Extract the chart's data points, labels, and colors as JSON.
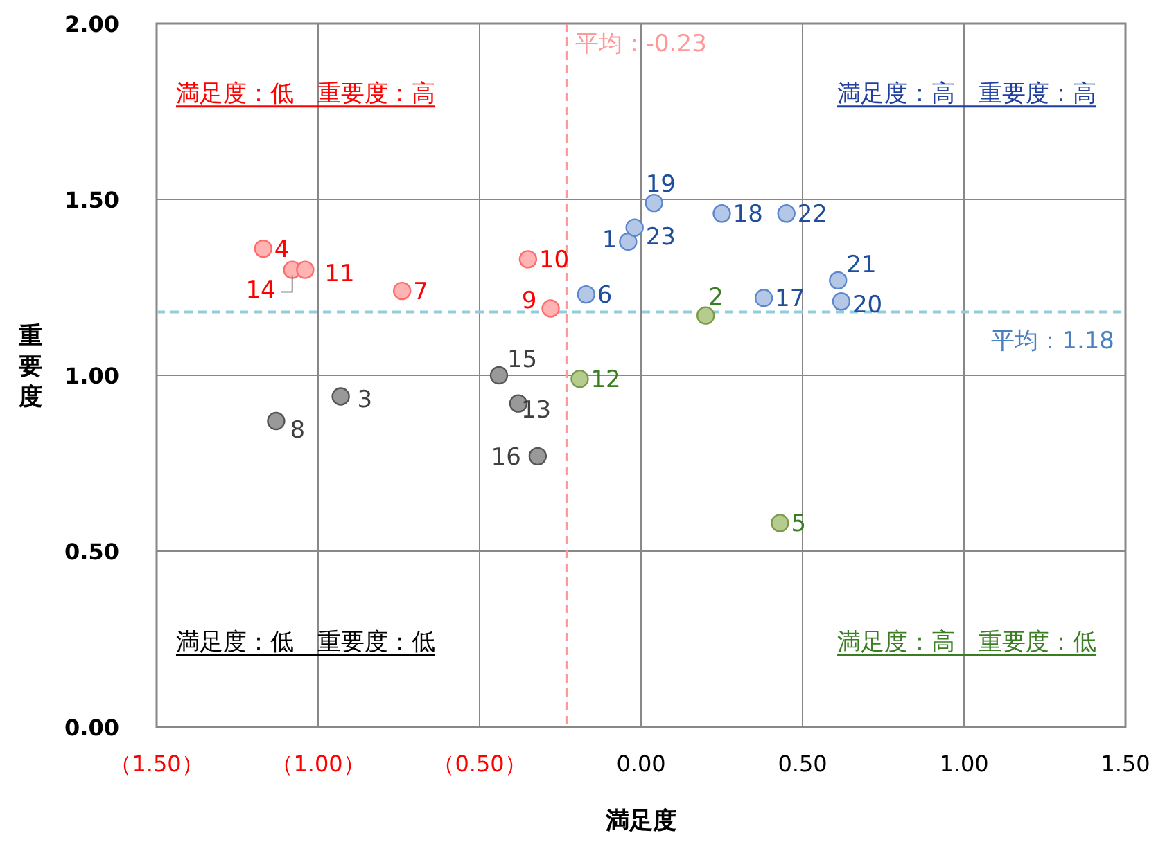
{
  "chart_data": {
    "type": "scatter",
    "xlabel": "満足度",
    "ylabel": "重要度",
    "xlim": [
      -1.5,
      1.5
    ],
    "ylim": [
      0,
      2
    ],
    "xticks": [
      {
        "value": -1.5,
        "label": "（1.50）"
      },
      {
        "value": -1.0,
        "label": "（1.00）"
      },
      {
        "value": -0.5,
        "label": "（0.50）"
      },
      {
        "value": 0,
        "label": "0.00"
      },
      {
        "value": 0.5,
        "label": "0.50"
      },
      {
        "value": 1.0,
        "label": "1.00"
      },
      {
        "value": 1.5,
        "label": "1.50"
      }
    ],
    "yticks": [
      {
        "value": 0,
        "label": "0.00"
      },
      {
        "value": 0.5,
        "label": "0.50"
      },
      {
        "value": 1.0,
        "label": "1.00"
      },
      {
        "value": 1.5,
        "label": "1.50"
      },
      {
        "value": 2.0,
        "label": "2.00"
      }
    ],
    "grid": true,
    "marker": "circle",
    "series": [
      {
        "color": "#ffb3b3",
        "x": [
          -1.17,
          -1.08,
          -1.04,
          -0.74,
          -0.35,
          -0.28
        ],
        "values": [
          1.36,
          1.3,
          1.3,
          1.24,
          1.33,
          1.19
        ]
      },
      {
        "color": "#b4c7e7",
        "x": [
          -0.17,
          -0.04,
          -0.02,
          0.04,
          0.25,
          0.45,
          0.61,
          0.62,
          0.38
        ],
        "values": [
          1.23,
          1.38,
          1.42,
          1.49,
          1.46,
          1.46,
          1.27,
          1.21,
          1.22
        ]
      },
      {
        "color": "#999999",
        "x": [
          -0.44,
          -0.93,
          -0.38,
          -1.13,
          -0.32
        ],
        "values": [
          1.0,
          0.94,
          0.92,
          0.87,
          0.77
        ]
      },
      {
        "color": "#b5cc8e",
        "x": [
          -0.19,
          0.2,
          0.43
        ],
        "values": [
          0.99,
          1.17,
          0.58
        ]
      }
    ],
    "ref_lines": [
      {
        "axis": "x",
        "value": -0.23,
        "label": "平均：-0.23",
        "color": "#ff9999",
        "line_style": "dashed"
      },
      {
        "axis": "y",
        "value": 1.18,
        "label": "平均：1.18",
        "color": "#92cddc",
        "line_style": "dashed"
      }
    ],
    "annotations": [
      "満足度：低　重要度：高",
      "満足度：高　重要度：高",
      "満足度：低　重要度：低",
      "満足度：高　重要度：低",
      {
        "text": "4",
        "x": -1.17,
        "y": 1.36
      },
      {
        "text": "14",
        "x": -1.08,
        "y": 1.3
      },
      {
        "text": "11",
        "x": -1.04,
        "y": 1.3
      },
      {
        "text": "7",
        "x": -0.74,
        "y": 1.24
      },
      {
        "text": "10",
        "x": -0.35,
        "y": 1.33
      },
      {
        "text": "9",
        "x": -0.28,
        "y": 1.19
      },
      {
        "text": "6",
        "x": -0.17,
        "y": 1.23
      },
      {
        "text": "1",
        "x": -0.04,
        "y": 1.38
      },
      {
        "text": "23",
        "x": -0.02,
        "y": 1.42
      },
      {
        "text": "19",
        "x": 0.04,
        "y": 1.49
      },
      {
        "text": "18",
        "x": 0.25,
        "y": 1.46
      },
      {
        "text": "22",
        "x": 0.45,
        "y": 1.46
      },
      {
        "text": "21",
        "x": 0.61,
        "y": 1.27
      },
      {
        "text": "20",
        "x": 0.62,
        "y": 1.21
      },
      {
        "text": "17",
        "x": 0.38,
        "y": 1.22
      },
      {
        "text": "15",
        "x": -0.44,
        "y": 1.0
      },
      {
        "text": "3",
        "x": -0.93,
        "y": 0.94
      },
      {
        "text": "13",
        "x": -0.38,
        "y": 0.92
      },
      {
        "text": "8",
        "x": -1.13,
        "y": 0.87
      },
      {
        "text": "16",
        "x": -0.32,
        "y": 0.77
      },
      {
        "text": "12",
        "x": -0.19,
        "y": 0.99
      },
      {
        "text": "2",
        "x": 0.2,
        "y": 1.17
      },
      {
        "text": "5",
        "x": 0.43,
        "y": 0.58
      }
    ]
  }
}
